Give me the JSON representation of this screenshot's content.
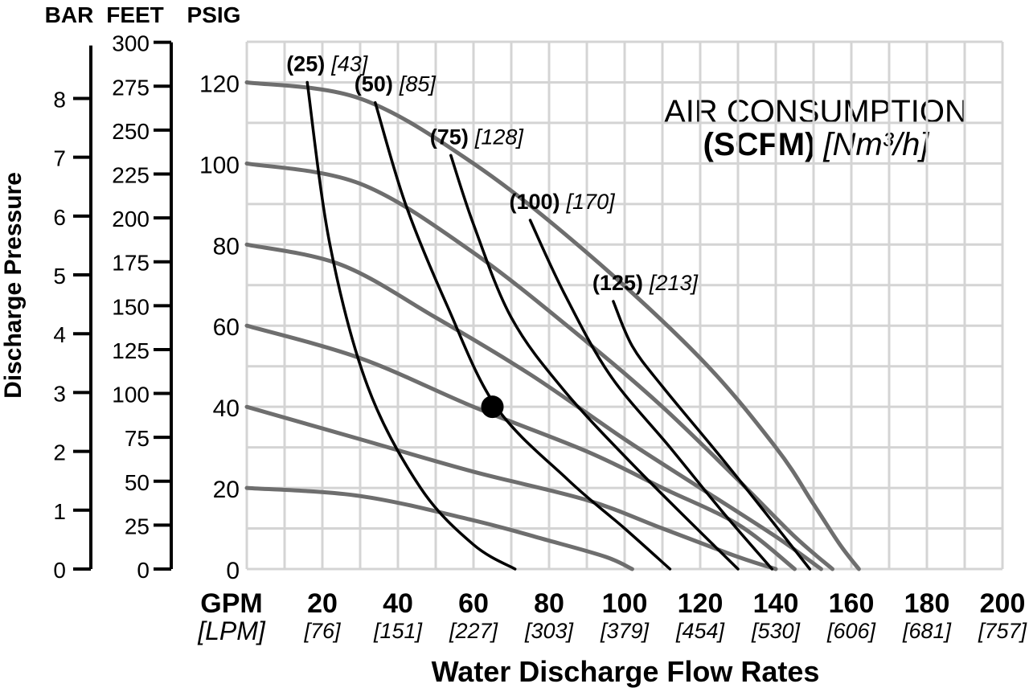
{
  "chart_data": {
    "type": "line",
    "title_line1": "AIR CONSUMPTION",
    "title_unit": "(SCFM)",
    "title_metric": "[Nm³/h]",
    "xlabel": "Water Discharge Flow Rates",
    "ylabel": "Discharge Pressure",
    "x_unit_primary": "GPM",
    "x_unit_secondary": "[LPM]",
    "y_units": [
      "BAR",
      "FEET",
      "PSIG"
    ],
    "xlim": [
      0,
      200
    ],
    "ylim": [
      0,
      130
    ],
    "grid": true,
    "x_ticks": [
      {
        "gpm": "20",
        "lpm": "[76]"
      },
      {
        "gpm": "40",
        "lpm": "[151]"
      },
      {
        "gpm": "60",
        "lpm": "[227]"
      },
      {
        "gpm": "80",
        "lpm": "[303]"
      },
      {
        "gpm": "100",
        "lpm": "[379]"
      },
      {
        "gpm": "120",
        "lpm": "[454]"
      },
      {
        "gpm": "140",
        "lpm": "[530]"
      },
      {
        "gpm": "160",
        "lpm": "[606]"
      },
      {
        "gpm": "180",
        "lpm": "[681]"
      },
      {
        "gpm": "200",
        "lpm": "[757]"
      }
    ],
    "psig_ticks": [
      "0",
      "20",
      "40",
      "60",
      "80",
      "100",
      "120"
    ],
    "feet_ticks": [
      "0",
      "25",
      "50",
      "75",
      "100",
      "125",
      "150",
      "175",
      "200",
      "225",
      "250",
      "275",
      "300"
    ],
    "bar_ticks": [
      "0",
      "1",
      "2",
      "3",
      "4",
      "5",
      "6",
      "7",
      "8"
    ],
    "series": [
      {
        "kind": "pressure-curve",
        "x": [
          0,
          30,
          60,
          90,
          120,
          140,
          150,
          157,
          162
        ],
        "y": [
          120,
          116,
          100,
          78,
          52,
          30,
          16,
          6,
          0
        ]
      },
      {
        "kind": "pressure-curve",
        "x": [
          0,
          30,
          60,
          90,
          110,
          130,
          145,
          155
        ],
        "y": [
          100,
          95,
          78,
          56,
          40,
          22,
          8,
          0
        ]
      },
      {
        "kind": "pressure-curve",
        "x": [
          0,
          25,
          50,
          75,
          100,
          120,
          140,
          152
        ],
        "y": [
          80,
          75,
          62,
          48,
          32,
          20,
          8,
          0
        ]
      },
      {
        "kind": "pressure-curve",
        "x": [
          0,
          30,
          60,
          90,
          110,
          130,
          145
        ],
        "y": [
          60,
          52,
          40,
          29,
          20,
          11,
          0
        ]
      },
      {
        "kind": "pressure-curve",
        "x": [
          0,
          30,
          60,
          90,
          110,
          130,
          140
        ],
        "y": [
          40,
          32,
          24,
          17,
          10,
          3,
          0
        ]
      },
      {
        "kind": "pressure-curve",
        "x": [
          0,
          30,
          60,
          80,
          95,
          102
        ],
        "y": [
          20,
          18,
          12,
          7,
          3,
          0
        ]
      },
      {
        "kind": "air-curve",
        "label": "(25)",
        "metric": "[43]",
        "x": [
          16,
          22,
          32,
          46,
          60,
          71
        ],
        "y": [
          120,
          80,
          45,
          20,
          6,
          0
        ]
      },
      {
        "kind": "air-curve",
        "label": "(50)",
        "metric": "[85]",
        "x": [
          34,
          42,
          53,
          66,
          85,
          100,
          112
        ],
        "y": [
          115,
          90,
          65,
          40,
          22,
          10,
          0
        ]
      },
      {
        "kind": "air-curve",
        "label": "(75)",
        "metric": "[128]",
        "x": [
          54,
          60,
          70,
          84,
          104,
          130
        ],
        "y": [
          102,
          85,
          62,
          44,
          24,
          0
        ]
      },
      {
        "kind": "air-curve",
        "label": "(100)",
        "metric": "[170]",
        "x": [
          75,
          84,
          96,
          112,
          126,
          139
        ],
        "y": [
          86,
          68,
          48,
          30,
          14,
          0
        ]
      },
      {
        "kind": "air-curve",
        "label": "(125)",
        "metric": "[213]",
        "x": [
          97,
          102,
          110,
          126,
          138,
          149
        ],
        "y": [
          66,
          55,
          45,
          27,
          13,
          0
        ]
      }
    ],
    "marker": {
      "x": 65,
      "y": 40
    },
    "colors": {
      "pressure_curve": "#6e6e6e",
      "air_curve": "#000000",
      "grid": "#d4d4d4",
      "axis": "#000000"
    }
  }
}
